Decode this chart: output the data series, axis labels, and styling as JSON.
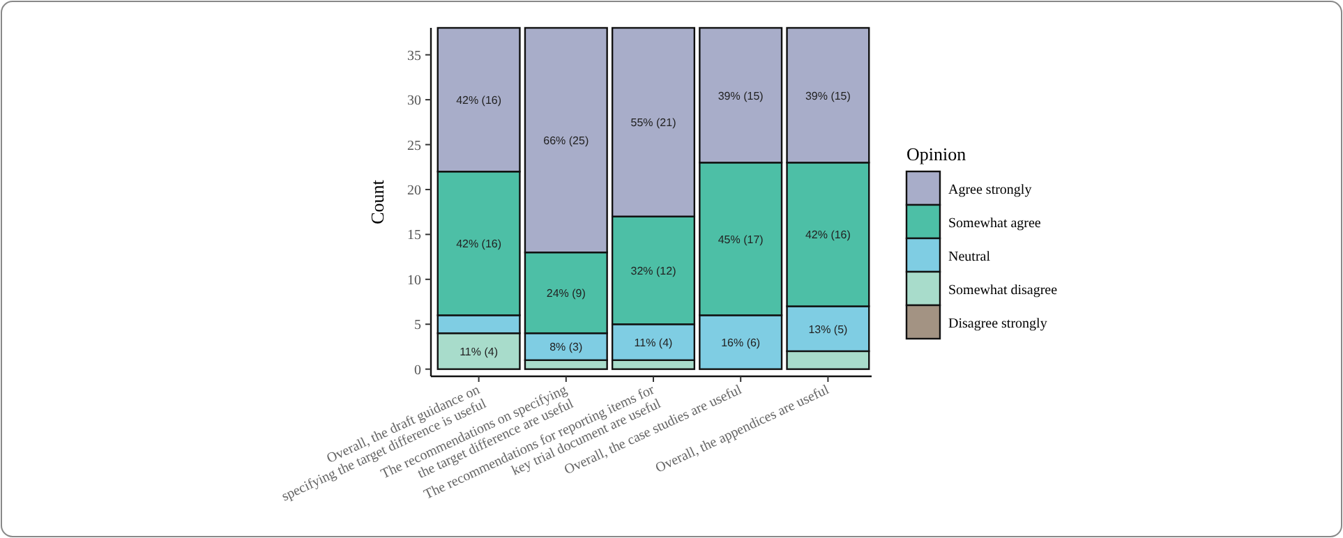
{
  "chart_data": {
    "type": "bar",
    "stacked": true,
    "ylabel": "Count",
    "legend_title": "Opinion",
    "legend": "right",
    "categories": [
      "Overall, the draft guidance on\nspecifying the target difference is useful",
      "The recommendations on specifying\nthe target difference are useful",
      "The recommendations for reporting items for\nkey trial document are useful",
      "Overall, the case studies are useful",
      "Overall, the appendices are useful"
    ],
    "ylim": [
      -0.8,
      38
    ],
    "yticks": [
      0,
      5,
      10,
      15,
      20,
      25,
      30,
      35
    ],
    "series": [
      {
        "name": "Disagree strongly",
        "color": "#a39383",
        "values": [
          0,
          0,
          0,
          0,
          0
        ]
      },
      {
        "name": "Somewhat disagree",
        "color": "#a8dccb",
        "values": [
          4,
          1,
          1,
          0,
          2
        ],
        "value_labels": [
          "11% (4)",
          null,
          null,
          null,
          null
        ]
      },
      {
        "name": "Neutral",
        "color": "#7fcde3",
        "values": [
          2,
          3,
          4,
          6,
          5
        ],
        "value_labels": [
          null,
          "8% (3)",
          "11% (4)",
          "16% (6)",
          "13% (5)"
        ]
      },
      {
        "name": "Somewhat agree",
        "color": "#4dbfa6",
        "values": [
          16,
          9,
          12,
          17,
          16
        ],
        "value_labels": [
          "42% (16)",
          "24% (9)",
          "32% (12)",
          "45% (17)",
          "42% (16)"
        ]
      },
      {
        "name": "Agree strongly",
        "color": "#a8adc9",
        "values": [
          16,
          25,
          21,
          15,
          15
        ],
        "value_labels": [
          "42% (16)",
          "66% (25)",
          "55% (21)",
          "39% (15)",
          "39% (15)"
        ]
      }
    ]
  }
}
